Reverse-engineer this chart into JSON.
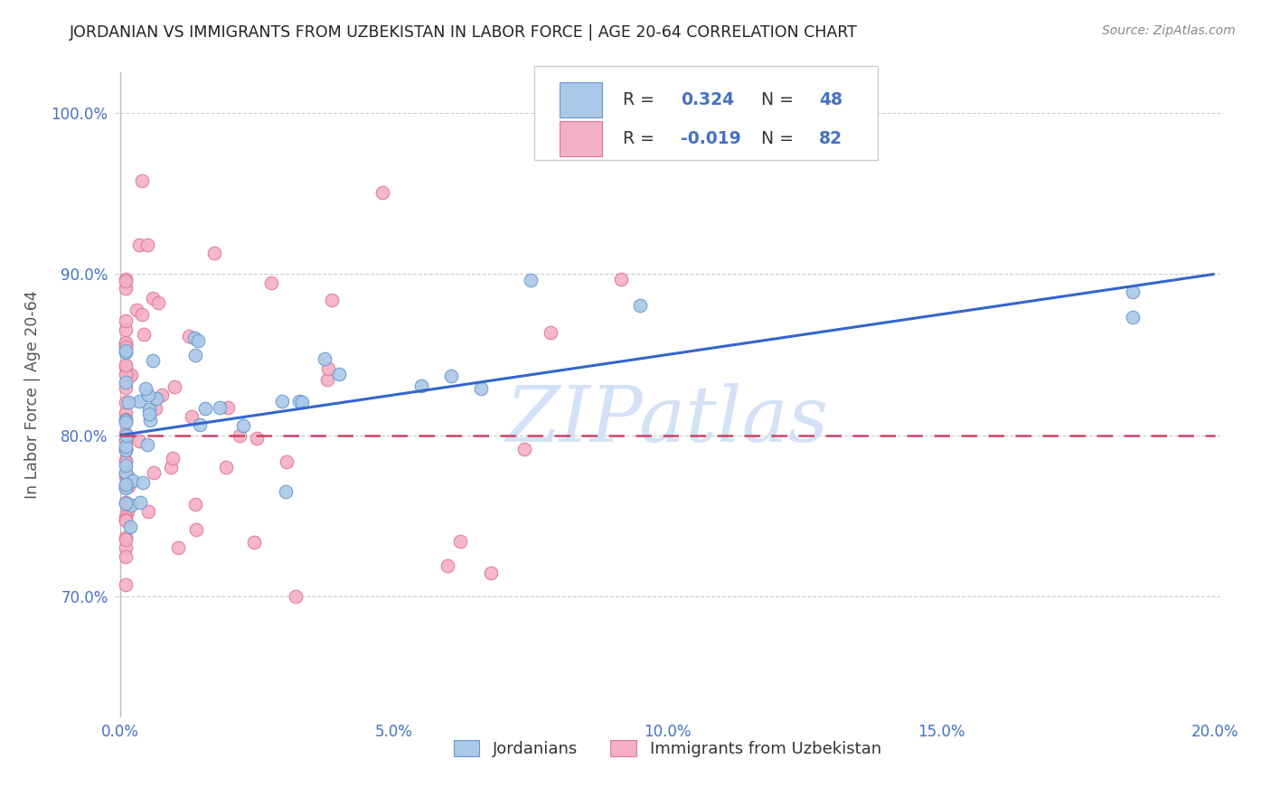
{
  "title": "JORDANIAN VS IMMIGRANTS FROM UZBEKISTAN IN LABOR FORCE | AGE 20-64 CORRELATION CHART",
  "source": "Source: ZipAtlas.com",
  "ylabel": "In Labor Force | Age 20-64",
  "xlim": [
    -0.001,
    0.201
  ],
  "ylim": [
    0.625,
    1.025
  ],
  "xticks": [
    0.0,
    0.05,
    0.1,
    0.15,
    0.2
  ],
  "xtick_labels": [
    "0.0%",
    "5.0%",
    "10.0%",
    "15.0%",
    "20.0%"
  ],
  "yticks": [
    0.7,
    0.8,
    0.9,
    1.0
  ],
  "ytick_labels": [
    "70.0%",
    "80.0%",
    "90.0%",
    "100.0%"
  ],
  "blue_face": "#aac8e8",
  "blue_edge": "#6699cc",
  "pink_face": "#f4b0c4",
  "pink_edge": "#dd7799",
  "line_blue_color": "#3366cc",
  "line_pink_color": "#cc4466",
  "r_blue": 0.324,
  "n_blue": 48,
  "r_pink": -0.019,
  "n_pink": 82,
  "watermark": "ZIPatlas",
  "legend_label_blue": "Jordanians",
  "legend_label_pink": "Immigrants from Uzbekistan",
  "bg_color": "#ffffff",
  "grid_color": "#cccccc",
  "title_color": "#222222",
  "axis_label_color": "#4472C4",
  "watermark_color": "#ccddf5",
  "blue_line_y0": 0.8,
  "blue_line_y1": 0.9,
  "pink_line_y0": 0.8,
  "pink_line_y1": 0.8
}
